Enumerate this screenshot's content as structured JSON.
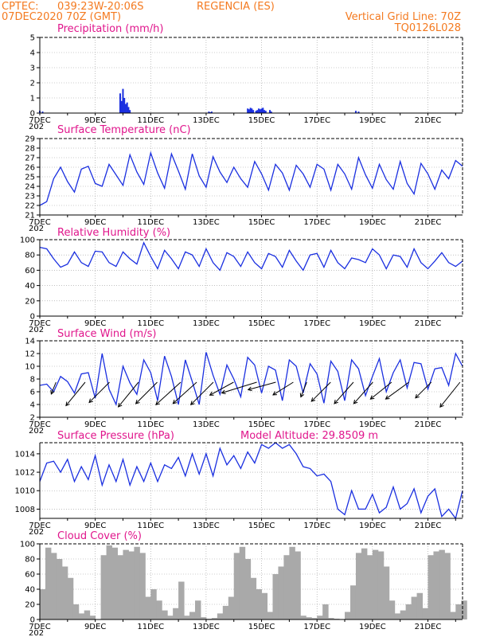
{
  "header": {
    "source": "CPTEC:",
    "location": "039:23W-20:06S",
    "city": "REGENCIA (ES)",
    "datetime": "07DEC2020 70Z (GMT)",
    "grid_note": "Vertical Grid Line: 70Z",
    "code": "TQ0126L028"
  },
  "x_labels": [
    "7DEC",
    "9DEC",
    "11DEC",
    "13DEC",
    "15DEC",
    "17DEC",
    "19DEC",
    "21DEC"
  ],
  "year_stub": "202",
  "colors": {
    "header": "#f47a20",
    "title": "#e0168c",
    "series": "#1a2fe0",
    "cloud": "#a9a9a9",
    "grid": "#9a9a9a"
  },
  "chart_data": [
    {
      "id": "precip",
      "type": "bar",
      "title": "Precipitation (mm/h)",
      "ylim": [
        0,
        5
      ],
      "yticks": [
        0,
        1,
        2,
        3,
        4,
        5
      ],
      "days": [
        0.0,
        0.1,
        2.9,
        2.95,
        3.0,
        3.05,
        3.1,
        3.15,
        3.2,
        3.25,
        6.1,
        6.15,
        6.2,
        7.5,
        7.55,
        7.6,
        7.65,
        7.7,
        7.8,
        7.85,
        7.9,
        7.95,
        8.0,
        8.05,
        8.1,
        8.15,
        8.3,
        8.35,
        11.4,
        11.5
      ],
      "values": [
        0.15,
        0.1,
        1.3,
        0.8,
        1.6,
        1.0,
        0.6,
        0.7,
        0.4,
        0.2,
        0.1,
        0.05,
        0.1,
        0.3,
        0.25,
        0.35,
        0.3,
        0.2,
        0.15,
        0.2,
        0.3,
        0.25,
        0.3,
        0.35,
        0.2,
        0.15,
        0.2,
        0.1,
        0.15,
        0.1
      ]
    },
    {
      "id": "temp",
      "type": "line",
      "title": "Surface Temperature (nC)",
      "ylim": [
        21,
        29
      ],
      "yticks": [
        21,
        22,
        23,
        24,
        25,
        26,
        27,
        28,
        29
      ],
      "days": [
        0,
        0.25,
        0.5,
        0.75,
        1,
        1.25,
        1.5,
        1.75,
        2,
        2.25,
        2.5,
        2.75,
        3,
        3.25,
        3.5,
        3.75,
        4,
        4.25,
        4.5,
        4.75,
        5,
        5.25,
        5.5,
        5.75,
        6,
        6.25,
        6.5,
        6.75,
        7,
        7.25,
        7.5,
        7.75,
        8,
        8.25,
        8.5,
        8.75,
        9,
        9.25,
        9.5,
        9.75,
        10,
        10.25,
        10.5,
        10.75,
        11,
        11.25,
        11.5,
        11.75,
        12,
        12.25,
        12.5,
        12.75,
        13,
        13.25,
        13.5,
        13.75,
        14,
        14.25,
        14.5,
        14.75,
        15,
        15.25
      ],
      "values": [
        22.0,
        22.4,
        24.8,
        26.0,
        24.5,
        23.4,
        25.8,
        26.1,
        24.3,
        24.0,
        26.3,
        25.2,
        24.1,
        27.3,
        25.5,
        24.2,
        27.5,
        25.4,
        23.8,
        27.4,
        25.6,
        23.7,
        27.4,
        25.1,
        23.9,
        27.1,
        25.5,
        24.4,
        26.0,
        24.8,
        23.9,
        26.6,
        25.3,
        23.6,
        26.3,
        25.4,
        23.6,
        26.2,
        25.3,
        23.9,
        26.3,
        25.8,
        23.6,
        26.3,
        25.3,
        23.7,
        27.0,
        25.2,
        23.8,
        26.3,
        24.7,
        23.7,
        26.6,
        24.3,
        23.2,
        26.4,
        25.3,
        23.7,
        25.7,
        24.8,
        26.7,
        26.1
      ]
    },
    {
      "id": "rh",
      "type": "line",
      "title": "Relative Humidity (%)",
      "ylim": [
        0,
        100
      ],
      "yticks": [
        0,
        20,
        40,
        60,
        80,
        100
      ],
      "days": [
        0,
        0.25,
        0.5,
        0.75,
        1,
        1.25,
        1.5,
        1.75,
        2,
        2.25,
        2.5,
        2.75,
        3,
        3.25,
        3.5,
        3.75,
        4,
        4.25,
        4.5,
        4.75,
        5,
        5.25,
        5.5,
        5.75,
        6,
        6.25,
        6.5,
        6.75,
        7,
        7.25,
        7.5,
        7.75,
        8,
        8.25,
        8.5,
        8.75,
        9,
        9.25,
        9.5,
        9.75,
        10,
        10.25,
        10.5,
        10.75,
        11,
        11.25,
        11.5,
        11.75,
        12,
        12.25,
        12.5,
        12.75,
        13,
        13.25,
        13.5,
        13.75,
        14,
        14.25,
        14.5,
        14.75,
        15,
        15.25
      ],
      "values": [
        90,
        88,
        75,
        64,
        68,
        84,
        70,
        65,
        85,
        84,
        70,
        65,
        84,
        75,
        68,
        96,
        78,
        62,
        86,
        75,
        62,
        84,
        80,
        65,
        88,
        70,
        60,
        83,
        78,
        65,
        84,
        70,
        62,
        82,
        78,
        64,
        86,
        72,
        60,
        80,
        82,
        64,
        86,
        70,
        62,
        76,
        74,
        70,
        88,
        80,
        62,
        80,
        78,
        64,
        88,
        70,
        62,
        72,
        83,
        70,
        65,
        72
      ]
    },
    {
      "id": "wind",
      "type": "line",
      "title": "Surface Wind (m/s)",
      "ylim": [
        2,
        14
      ],
      "yticks": [
        2,
        4,
        6,
        8,
        10,
        12,
        14
      ],
      "days": [
        0,
        0.25,
        0.5,
        0.75,
        1,
        1.25,
        1.5,
        1.75,
        2,
        2.25,
        2.5,
        2.75,
        3,
        3.25,
        3.5,
        3.75,
        4,
        4.25,
        4.5,
        4.75,
        5,
        5.25,
        5.5,
        5.75,
        6,
        6.25,
        6.5,
        6.75,
        7,
        7.25,
        7.5,
        7.75,
        8,
        8.25,
        8.5,
        8.75,
        9,
        9.25,
        9.5,
        9.75,
        10,
        10.25,
        10.5,
        10.75,
        11,
        11.25,
        11.5,
        11.75,
        12,
        12.25,
        12.5,
        12.75,
        13,
        13.25,
        13.5,
        13.75,
        14,
        14.25,
        14.5,
        14.75,
        15,
        15.25
      ],
      "values": [
        7.0,
        7.2,
        6.0,
        8.4,
        7.6,
        5.8,
        8.8,
        9.0,
        5.0,
        12.0,
        6.4,
        4.0,
        10.0,
        7.4,
        5.6,
        11.0,
        9.0,
        4.6,
        11.6,
        8.4,
        4.0,
        11.0,
        7.6,
        4.0,
        12.2,
        8.6,
        5.6,
        10.2,
        8.0,
        5.2,
        11.4,
        10.2,
        5.8,
        10.0,
        9.4,
        4.6,
        11.0,
        10.0,
        5.8,
        10.4,
        8.8,
        4.2,
        10.8,
        9.2,
        4.6,
        11.0,
        9.6,
        5.4,
        8.4,
        11.2,
        6.0,
        9.0,
        11.0,
        6.6,
        10.6,
        10.4,
        6.4,
        9.6,
        9.8,
        7.0,
        12.0,
        10.0
      ],
      "arrows_days": [
        0.4,
        1.2,
        2.1,
        3.1,
        3.8,
        4.6,
        5.2,
        5.8,
        6.6,
        7.3,
        8.1,
        8.8,
        9.4,
        10.1,
        10.9,
        11.6,
        12.3,
        12.9,
        13.8,
        14.7
      ],
      "arrows_u": [
        0.4,
        0.9,
        1.0,
        0.9,
        1.0,
        1.1,
        1.0,
        0.9,
        1.1,
        1.3,
        1.1,
        0.8,
        0.4,
        0.9,
        0.8,
        0.8,
        1.0,
        1.1,
        1.0,
        0.8
      ],
      "arrows_v": [
        1.0,
        1.1,
        1.0,
        1.1,
        1.0,
        1.0,
        0.9,
        0.9,
        0.6,
        0.4,
        0.3,
        0.5,
        1.0,
        0.9,
        0.9,
        0.9,
        0.8,
        0.8,
        1.0,
        1.0
      ],
      "arrows_len": [
        16,
        38,
        36,
        40,
        38,
        42,
        40,
        40,
        34,
        46,
        36,
        30,
        20,
        34,
        36,
        36,
        34,
        36,
        28,
        40
      ]
    },
    {
      "id": "pressure",
      "type": "line",
      "title": "Surface Pressure (hPa)",
      "annotation": "Model Altitude: 29.8509 m",
      "ylim": [
        1007,
        1015.2
      ],
      "yticks": [
        1008,
        1010,
        1012,
        1014
      ],
      "days": [
        0,
        0.25,
        0.5,
        0.75,
        1,
        1.25,
        1.5,
        1.75,
        2,
        2.25,
        2.5,
        2.75,
        3,
        3.25,
        3.5,
        3.75,
        4,
        4.25,
        4.5,
        4.75,
        5,
        5.25,
        5.5,
        5.75,
        6,
        6.25,
        6.5,
        6.75,
        7,
        7.25,
        7.5,
        7.75,
        8,
        8.25,
        8.5,
        8.75,
        9,
        9.25,
        9.5,
        9.75,
        10,
        10.25,
        10.5,
        10.75,
        11,
        11.25,
        11.5,
        11.75,
        12,
        12.25,
        12.5,
        12.75,
        13,
        13.25,
        13.5,
        13.75,
        14,
        14.25,
        14.5,
        14.75,
        15,
        15.25
      ],
      "values": [
        1011.0,
        1013.0,
        1013.2,
        1012.0,
        1013.4,
        1011.0,
        1012.6,
        1011.2,
        1013.8,
        1010.6,
        1012.8,
        1011.0,
        1013.4,
        1010.6,
        1012.6,
        1011.0,
        1013.0,
        1011.0,
        1012.8,
        1012.4,
        1013.6,
        1011.6,
        1014.0,
        1011.8,
        1014.0,
        1011.6,
        1014.6,
        1012.8,
        1013.8,
        1012.4,
        1014.2,
        1013.0,
        1015.0,
        1014.6,
        1015.2,
        1014.6,
        1015.0,
        1014.0,
        1012.6,
        1012.4,
        1011.6,
        1011.8,
        1011.0,
        1008.0,
        1007.4,
        1010.0,
        1008.0,
        1008.0,
        1009.6,
        1007.6,
        1008.2,
        1010.4,
        1008.0,
        1008.6,
        1010.2,
        1007.6,
        1009.4,
        1010.2,
        1007.2,
        1008.0,
        1007.0,
        1010.0
      ]
    },
    {
      "id": "cloud",
      "type": "bar",
      "title": "Cloud Cover (%)",
      "ylim": [
        0,
        100
      ],
      "yticks": [
        0,
        20,
        40,
        60,
        80,
        100
      ],
      "days": [
        0,
        0.2,
        0.4,
        0.6,
        0.8,
        1.0,
        1.2,
        1.4,
        1.6,
        1.8,
        2.0,
        2.2,
        2.4,
        2.6,
        2.8,
        3.0,
        3.2,
        3.4,
        3.6,
        3.8,
        4.0,
        4.2,
        4.4,
        4.6,
        4.8,
        5.0,
        5.2,
        5.4,
        5.6,
        5.8,
        6.0,
        6.2,
        6.4,
        6.6,
        6.8,
        7.0,
        7.2,
        7.4,
        7.6,
        7.8,
        8.0,
        8.2,
        8.4,
        8.6,
        8.8,
        9.0,
        9.2,
        9.4,
        9.6,
        9.8,
        10.0,
        10.2,
        10.4,
        10.6,
        10.8,
        11.0,
        11.2,
        11.4,
        11.6,
        11.8,
        12.0,
        12.2,
        12.4,
        12.6,
        12.8,
        13.0,
        13.2,
        13.4,
        13.6,
        13.8,
        14.0,
        14.2,
        14.4,
        14.6,
        14.8,
        15.0,
        15.2
      ],
      "values": [
        40,
        95,
        88,
        80,
        70,
        55,
        20,
        8,
        12,
        5,
        0,
        85,
        98,
        95,
        85,
        92,
        90,
        96,
        88,
        30,
        40,
        25,
        12,
        5,
        15,
        50,
        5,
        10,
        25,
        3,
        1,
        2,
        8,
        18,
        30,
        88,
        96,
        80,
        55,
        40,
        35,
        10,
        60,
        70,
        85,
        96,
        90,
        5,
        3,
        2,
        5,
        20,
        2,
        1,
        0,
        10,
        45,
        88,
        94,
        85,
        92,
        90,
        70,
        25,
        8,
        12,
        20,
        30,
        35,
        15,
        85,
        90,
        92,
        88,
        10,
        20,
        25
      ]
    }
  ]
}
